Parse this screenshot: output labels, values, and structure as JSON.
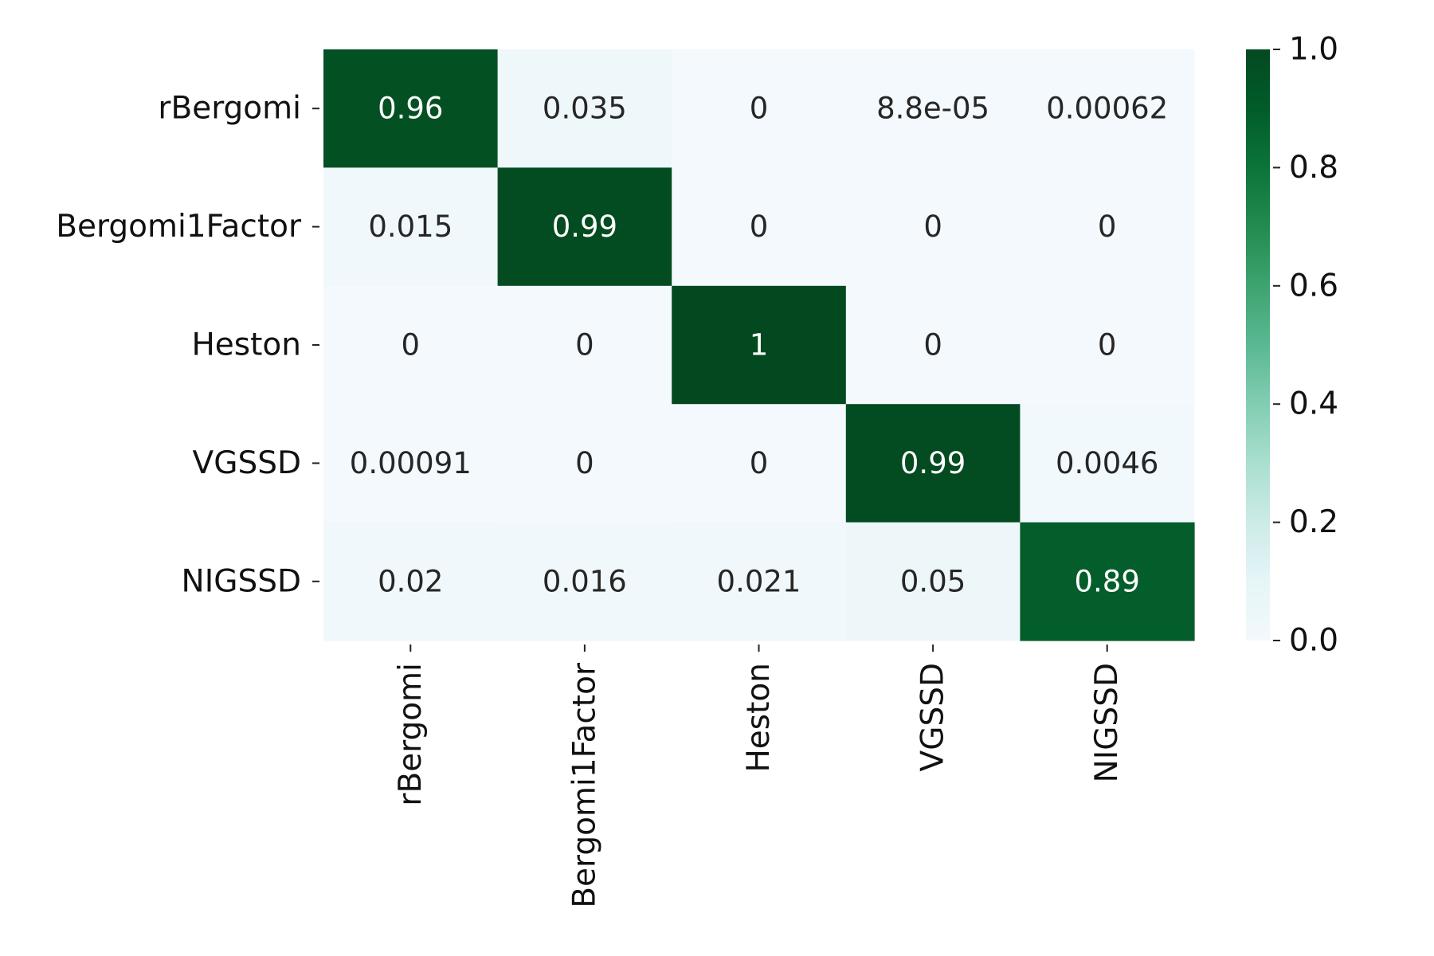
{
  "chart_data": {
    "type": "heatmap",
    "title": "",
    "xlabel": "",
    "ylabel": "",
    "row_labels": [
      "rBergomi",
      "Bergomi1Factor",
      "Heston",
      "VGSSD",
      "NIGSSD"
    ],
    "col_labels": [
      "rBergomi",
      "Bergomi1Factor",
      "Heston",
      "VGSSD",
      "NIGSSD"
    ],
    "values": [
      [
        0.96,
        0.035,
        0,
        8.8e-05,
        0.00062
      ],
      [
        0.015,
        0.99,
        0,
        0,
        0
      ],
      [
        0,
        0,
        1,
        0,
        0
      ],
      [
        0.00091,
        0,
        0,
        0.99,
        0.0046
      ],
      [
        0.02,
        0.016,
        0.021,
        0.05,
        0.89
      ]
    ],
    "cell_labels": [
      [
        "0.96",
        "0.035",
        "0",
        "8.8e-05",
        "0.00062"
      ],
      [
        "0.015",
        "0.99",
        "0",
        "0",
        "0"
      ],
      [
        "0",
        "0",
        "1",
        "0",
        "0"
      ],
      [
        "0.00091",
        "0",
        "0",
        "0.99",
        "0.0046"
      ],
      [
        "0.02",
        "0.016",
        "0.021",
        "0.05",
        "0.89"
      ]
    ],
    "colorbar": {
      "range": [
        0,
        1
      ],
      "ticks": [
        0.0,
        0.2,
        0.4,
        0.6,
        0.8,
        1.0
      ],
      "tick_labels": [
        "0.0",
        "0.2",
        "0.4",
        "0.6",
        "0.8",
        "1.0"
      ],
      "colormap": "Greens"
    },
    "colors": {
      "low": "#f3f9fc",
      "high": "#03491f"
    },
    "grid": false
  }
}
